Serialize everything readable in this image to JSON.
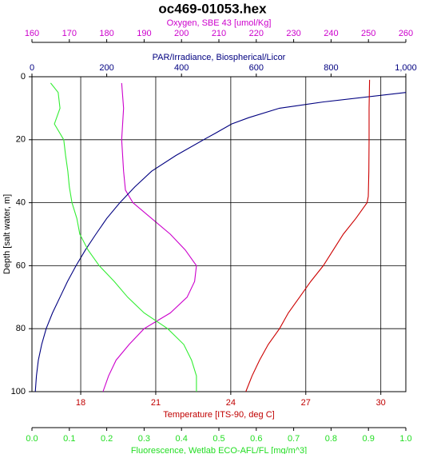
{
  "chart_data": {
    "type": "line",
    "title": "oc469-01053.hex",
    "ylabel": "Depth [salt water, m]",
    "ylim": [
      0,
      100
    ],
    "yticks": [
      0,
      20,
      40,
      60,
      80,
      100
    ],
    "y_reversed": true,
    "grid": true,
    "x_axes": [
      {
        "label": "Oxygen, SBE 43 [umol/Kg]",
        "position": "top",
        "color": "#cc00cc",
        "line_color": "#cc00cc",
        "xlim": [
          160,
          260
        ],
        "xticks": [
          160,
          170,
          180,
          190,
          200,
          210,
          220,
          230,
          240,
          250,
          260
        ],
        "grid": false,
        "depth": [
          2,
          10,
          20,
          30,
          36,
          40,
          45,
          50,
          55,
          60,
          65,
          70,
          75,
          80,
          85,
          90,
          95,
          100
        ],
        "values": [
          184,
          184.5,
          184,
          184.5,
          185,
          187,
          192,
          197,
          201,
          204,
          203.5,
          201.5,
          197,
          190,
          186,
          182.5,
          180.5,
          179
        ]
      },
      {
        "label": "PAR/Irradiance, Biospherical/Licor",
        "position": "top",
        "color": "#000080",
        "line_color": "#000080",
        "xlim": [
          0,
          1000
        ],
        "xticks": [
          0,
          200,
          400,
          600,
          {
            "value": 800,
            "label": "800"
          },
          {
            "value": 1000,
            "label": "1,000"
          }
        ],
        "grid": false,
        "depth": [
          5,
          8,
          10,
          13,
          15,
          18,
          20,
          25,
          30,
          35,
          40,
          45,
          50,
          55,
          60,
          65,
          70,
          75,
          80,
          85,
          90,
          95,
          100
        ],
        "values": [
          1000,
          780,
          662,
          580,
          534,
          490,
          459,
          385,
          320,
          275,
          235,
          200,
          171,
          143,
          118,
          95,
          75,
          55,
          38,
          26,
          17,
          12,
          9
        ]
      },
      {
        "label": "Temperature [ITS-90, deg C]",
        "position": "bottom",
        "color": "#c00000",
        "line_color": "#cc0000",
        "xlim": [
          16.05,
          31.0
        ],
        "xticks": [
          18,
          21,
          24,
          27,
          30
        ],
        "grid": true,
        "depth": [
          1,
          10,
          20,
          30,
          38,
          40,
          45,
          50,
          55,
          60,
          65,
          70,
          75,
          80,
          85,
          90,
          95,
          100
        ],
        "values": [
          29.55,
          29.53,
          29.53,
          29.52,
          29.5,
          29.45,
          29.0,
          28.5,
          28.1,
          27.7,
          27.2,
          26.75,
          26.3,
          25.95,
          25.5,
          25.15,
          24.85,
          24.6
        ]
      },
      {
        "label": "Fluorescence, Wetlab ECO-AFL/FL [mg/m^3]",
        "position": "bottom",
        "color": "#22dd22",
        "line_color": "#33ee33",
        "xlim": [
          0,
          1
        ],
        "xticks": [
          {
            "value": 0,
            "label": "0.0"
          },
          0.1,
          0.2,
          0.3,
          0.4,
          0.5,
          0.6,
          0.7,
          0.8,
          0.9,
          {
            "value": 1,
            "label": "1.0"
          }
        ],
        "grid": false,
        "depth": [
          2,
          5,
          10,
          15,
          20,
          25,
          30,
          35,
          40,
          45,
          50,
          55,
          60,
          65,
          70,
          75,
          80,
          85,
          90,
          95,
          100
        ],
        "values": [
          0.05,
          0.07,
          0.075,
          0.06,
          0.085,
          0.09,
          0.096,
          0.1,
          0.107,
          0.12,
          0.128,
          0.15,
          0.18,
          0.22,
          0.256,
          0.3,
          0.363,
          0.406,
          0.427,
          0.44,
          0.44
        ]
      }
    ]
  }
}
